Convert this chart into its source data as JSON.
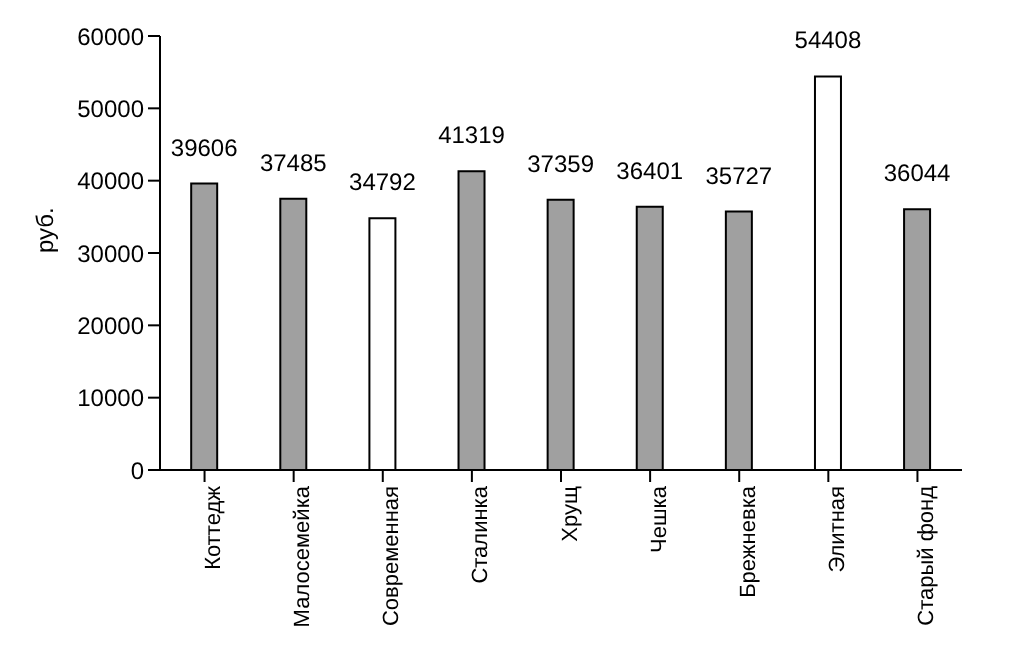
{
  "chart_data": {
    "type": "bar",
    "ylabel": "руб.",
    "categories": [
      "Коттедж",
      "Малосемейка",
      "Современная",
      "Сталинка",
      "Хрущ",
      "Чешка",
      "Брежневка",
      "Элитная",
      "Старый фонд"
    ],
    "values": [
      39606,
      37485,
      34792,
      41319,
      37359,
      36401,
      35727,
      54408,
      36044
    ],
    "colors": [
      "#a0a0a0",
      "#a0a0a0",
      "#ffffff",
      "#a0a0a0",
      "#a0a0a0",
      "#a0a0a0",
      "#a0a0a0",
      "#ffffff",
      "#a0a0a0"
    ],
    "ylim": [
      0,
      60000
    ],
    "yticks": [
      0,
      10000,
      20000,
      30000,
      40000,
      50000,
      60000
    ],
    "grid": false,
    "legend": false,
    "data_labels": true
  }
}
